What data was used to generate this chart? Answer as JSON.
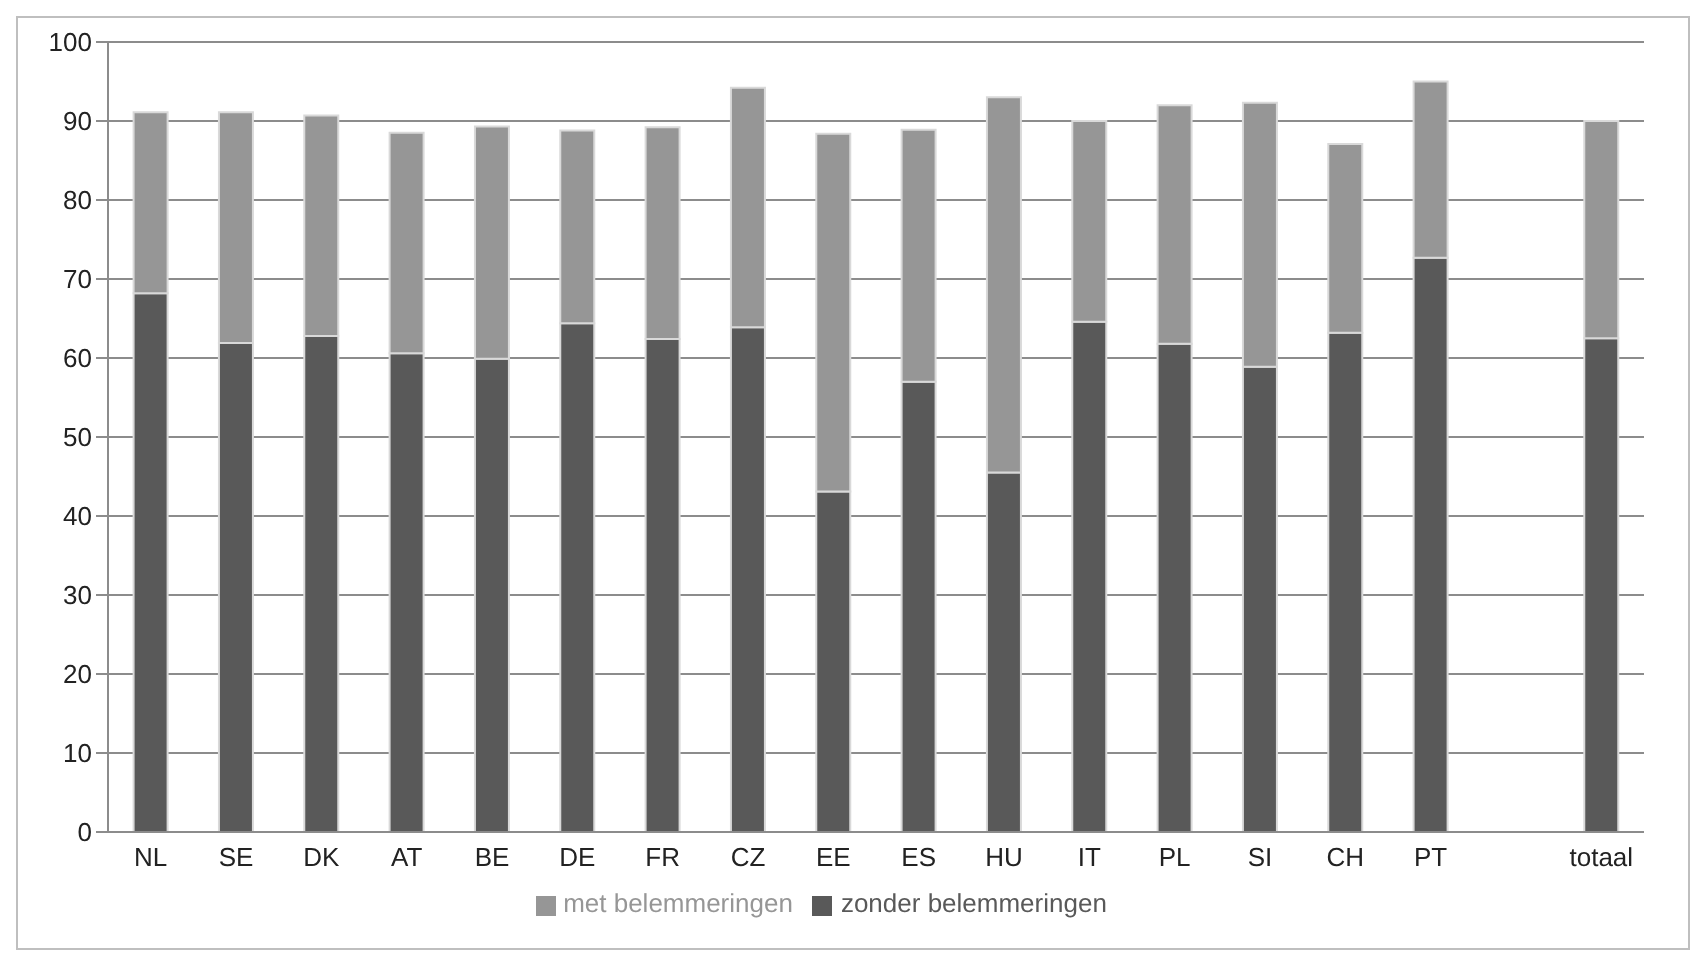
{
  "chart_data": {
    "type": "bar",
    "stacked": true,
    "categories": [
      "NL",
      "SE",
      "DK",
      "AT",
      "BE",
      "DE",
      "FR",
      "CZ",
      "EE",
      "ES",
      "HU",
      "IT",
      "PL",
      "SI",
      "CH",
      "PT",
      null,
      "totaal"
    ],
    "series": [
      {
        "name": "zonder belemmeringen",
        "color": "#595959",
        "values": [
          68.2,
          61.9,
          62.8,
          60.6,
          59.9,
          64.4,
          62.4,
          63.9,
          43.1,
          57.0,
          45.5,
          64.6,
          61.8,
          58.9,
          63.2,
          72.7,
          null,
          62.5
        ]
      },
      {
        "name": "met belemmeringen",
        "color": "#969696",
        "values": [
          22.9,
          29.2,
          27.9,
          27.9,
          29.4,
          24.4,
          26.8,
          30.3,
          45.3,
          31.9,
          47.5,
          25.4,
          30.2,
          33.4,
          23.9,
          22.3,
          null,
          27.5
        ]
      }
    ],
    "ylim": [
      0,
      100
    ],
    "yticks": [
      0,
      10,
      20,
      30,
      40,
      50,
      60,
      70,
      80,
      90,
      100
    ],
    "grid": "y",
    "legend": "bottom"
  }
}
